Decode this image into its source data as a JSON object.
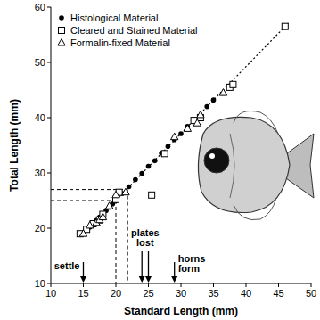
{
  "chart_data": {
    "type": "scatter",
    "x_label": "Standard Length (mm)",
    "y_label": "Total Length (mm)",
    "xlim": [
      10,
      50
    ],
    "xticks": [
      10,
      15,
      20,
      25,
      30,
      35,
      40,
      45,
      50
    ],
    "ylim": [
      10,
      60
    ],
    "yticks": [
      10,
      20,
      30,
      40,
      50,
      60
    ],
    "grid": false,
    "legend": "upper left",
    "series": [
      {
        "name": "Histological Material",
        "marker": "circle",
        "color": "#000000",
        "x": [
          15,
          16,
          17,
          17.5,
          18,
          18.5,
          19,
          19.5,
          20,
          21,
          22,
          23,
          24,
          25,
          26,
          27,
          28,
          29,
          30,
          31,
          32,
          34,
          35
        ],
        "values": [
          19.0,
          20.2,
          21.4,
          22.0,
          22.6,
          23.2,
          23.8,
          24.4,
          25.0,
          26.3,
          27.5,
          28.8,
          29.9,
          31.2,
          32.2,
          33.6,
          34.8,
          36.0,
          37.1,
          38.4,
          39.5,
          42.0,
          43.2
        ]
      },
      {
        "name": "Cleared and Stained Material",
        "marker": "square",
        "color": "#000000",
        "x": [
          14.5,
          15.5,
          16.5,
          17.5,
          18,
          20,
          20.5,
          25.5,
          27.5,
          32,
          33,
          37.5,
          38,
          46
        ],
        "values": [
          19,
          19.8,
          20.8,
          21.5,
          22.5,
          25.2,
          26.5,
          26,
          33.5,
          39.5,
          40,
          45.5,
          46,
          56.5
        ]
      },
      {
        "name": "Formalin-fixed Material",
        "marker": "triangle",
        "color": "#000000",
        "x": [
          15,
          16,
          17,
          17.5,
          18,
          19,
          20,
          21.5,
          29,
          31,
          32.5,
          33,
          36.5
        ],
        "values": [
          19,
          20.5,
          21,
          21.5,
          22,
          24,
          26,
          26.5,
          36.5,
          38,
          39,
          40.5,
          44.5
        ]
      },
      {
        "type": "line",
        "line_style": "dotted",
        "color": "#000000",
        "x": [
          14.5,
          46.5
        ],
        "values": [
          18.4,
          57.1
        ]
      }
    ],
    "reference_lines": [
      {
        "x": 20,
        "y": 25
      },
      {
        "x": 21.8,
        "y": 27
      }
    ],
    "annotations": [
      {
        "text": [
          "settle"
        ],
        "x": [
          15
        ]
      },
      {
        "text": [
          "plates",
          "lost"
        ],
        "x": [
          24,
          25
        ]
      },
      {
        "text": [
          "horns",
          "form"
        ],
        "x": [
          29
        ]
      }
    ]
  }
}
